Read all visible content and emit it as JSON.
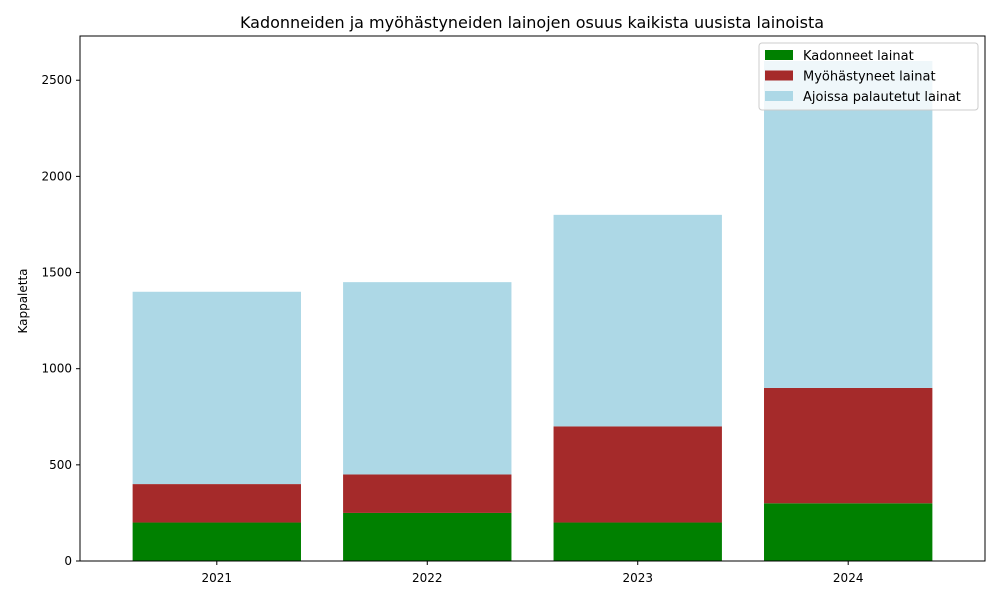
{
  "chart_data": {
    "type": "bar",
    "stacked": true,
    "title": "Kadonneiden ja myöhästyneiden lainojen osuus kaikista uusista lainoista",
    "xlabel": "",
    "ylabel": "Kappaletta",
    "categories": [
      "2021",
      "2022",
      "2023",
      "2024"
    ],
    "series": [
      {
        "name": "Kadonneet lainat",
        "color": "#008000",
        "values": [
          200,
          250,
          200,
          300
        ]
      },
      {
        "name": "Myöhästyneet lainat",
        "color": "#a52a2a",
        "values": [
          200,
          200,
          500,
          600
        ]
      },
      {
        "name": "Ajoissa palautetut lainat",
        "color": "#add8e6",
        "values": [
          1000,
          1000,
          1100,
          1700
        ]
      }
    ],
    "ylim": [
      0,
      2730
    ],
    "yticks": [
      0,
      500,
      1000,
      1500,
      2000,
      2500
    ],
    "grid": false,
    "legend_position": "top-right"
  }
}
